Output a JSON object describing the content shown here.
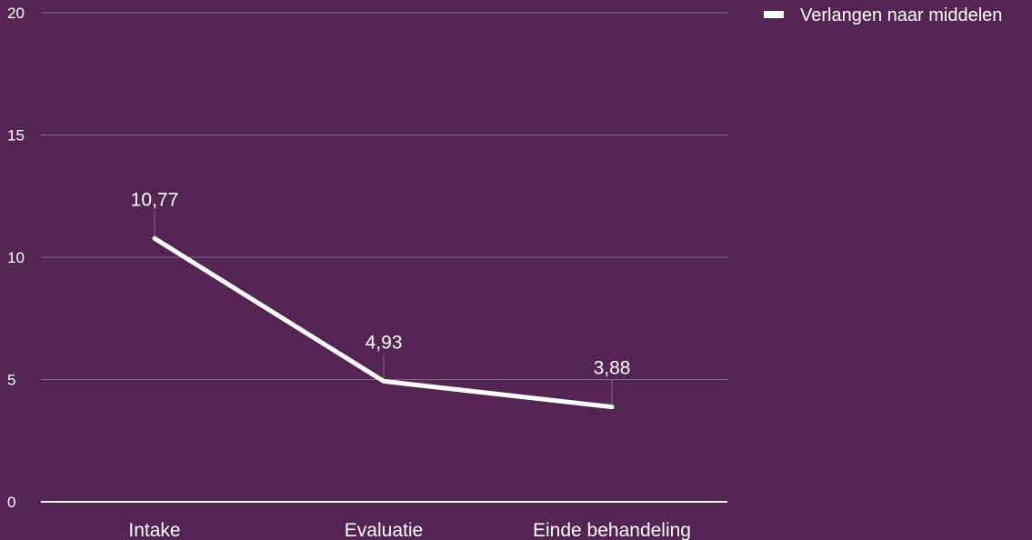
{
  "chart_data": {
    "type": "line",
    "categories": [
      "Intake",
      "Evaluatie",
      "Einde behandeling"
    ],
    "series": [
      {
        "name": "Verlangen naar middelen",
        "values": [
          10.77,
          4.93,
          3.88
        ],
        "labels": [
          "10,77",
          "4,93",
          "3,88"
        ]
      }
    ],
    "ylim": [
      0,
      20
    ],
    "yticks": [
      0,
      5,
      10,
      15,
      20
    ],
    "ytick_labels": [
      "0",
      "5",
      "10",
      "15",
      "20"
    ],
    "grid": true,
    "legend_position": "top-right",
    "colors": {
      "background": "#542552",
      "line": "#ffffff",
      "grid": "#8a6588",
      "axis": "#ffffff",
      "text": "#ffffff"
    }
  }
}
